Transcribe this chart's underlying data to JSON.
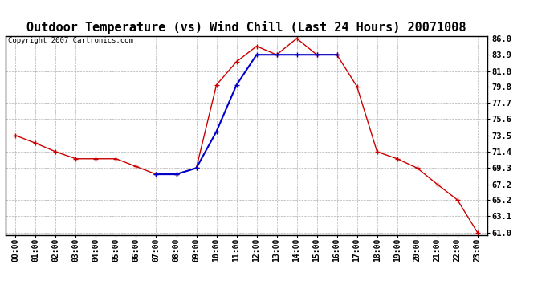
{
  "title": "Outdoor Temperature (vs) Wind Chill (Last 24 Hours) 20071008",
  "copyright": "Copyright 2007 Cartronics.com",
  "x_labels": [
    "00:00",
    "01:00",
    "02:00",
    "03:00",
    "04:00",
    "05:00",
    "06:00",
    "07:00",
    "08:00",
    "09:00",
    "10:00",
    "11:00",
    "12:00",
    "13:00",
    "14:00",
    "15:00",
    "16:00",
    "17:00",
    "18:00",
    "19:00",
    "20:00",
    "21:00",
    "22:00",
    "23:00"
  ],
  "temp_red": [
    73.5,
    72.5,
    71.4,
    70.5,
    70.5,
    70.5,
    69.5,
    68.5,
    68.5,
    69.3,
    80.0,
    83.0,
    85.0,
    83.9,
    86.0,
    83.9,
    83.9,
    79.8,
    71.4,
    70.5,
    69.3,
    67.2,
    65.2,
    61.0
  ],
  "temp_blue": [
    null,
    null,
    null,
    null,
    null,
    null,
    null,
    68.5,
    68.5,
    69.3,
    74.0,
    80.0,
    83.9,
    83.9,
    83.9,
    83.9,
    83.9,
    null,
    null,
    null,
    null,
    null,
    null,
    null
  ],
  "y_ticks": [
    61.0,
    63.1,
    65.2,
    67.2,
    69.3,
    71.4,
    73.5,
    75.6,
    77.7,
    79.8,
    81.8,
    83.9,
    86.0
  ],
  "y_min": 61.0,
  "y_max": 86.0,
  "bg_color": "#ffffff",
  "grid_color": "#b0b0b0",
  "red_color": "#cc0000",
  "blue_color": "#0000cc",
  "title_fontsize": 11,
  "copyright_fontsize": 6.5,
  "tick_fontsize": 7.5,
  "xtick_fontsize": 7.0
}
